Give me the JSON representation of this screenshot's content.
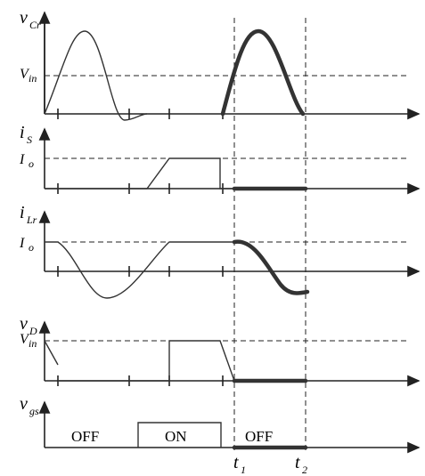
{
  "panels": [
    {
      "symbol": "v",
      "subscript": "Cr",
      "level": "V",
      "level_subscript": "in"
    },
    {
      "symbol": "i",
      "subscript": "S",
      "level": "I",
      "level_subscript": "o"
    },
    {
      "symbol": "i",
      "subscript": "Lr",
      "level": "I",
      "level_subscript": "o"
    },
    {
      "symbol": "v",
      "subscript": "D",
      "level": "V",
      "level_subscript": "in"
    },
    {
      "symbol": "v",
      "subscript": "gs"
    }
  ],
  "gate_states": [
    "OFF",
    "ON",
    "OFF"
  ],
  "time_markers": [
    {
      "symbol": "t",
      "subscript": "1"
    },
    {
      "symbol": "t",
      "subscript": "2"
    }
  ]
}
